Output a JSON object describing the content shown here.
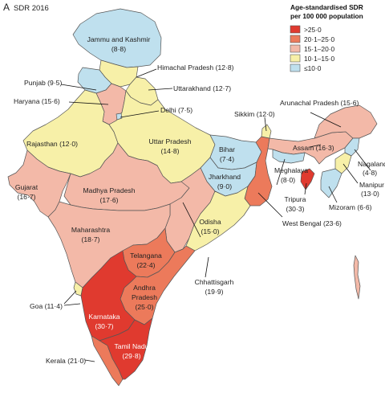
{
  "panel": {
    "letter": "A",
    "title": "SDR 2016"
  },
  "legend": {
    "title_line1": "Age-standardised SDR",
    "title_line2": "per 100 000 population",
    "items": [
      {
        "label": ">25·0",
        "color": "#e03a2f"
      },
      {
        "label": "20·1–25·0",
        "color": "#ec7a5b"
      },
      {
        "label": "15·1–20·0",
        "color": "#f3b9a8"
      },
      {
        "label": "10·1–15·0",
        "color": "#f7f0a8"
      },
      {
        "label": "≤10·0",
        "color": "#bfe0ee"
      }
    ]
  },
  "states": [
    {
      "name": "Jammu and Kashmir",
      "value": "(8·8)",
      "category": "≤10·0"
    },
    {
      "name": "Himachal Pradesh",
      "value": "(12·8)",
      "category": "10·1–15·0"
    },
    {
      "name": "Punjab",
      "value": "(9·5)",
      "category": "≤10·0"
    },
    {
      "name": "Uttarakhand",
      "value": "(12·7)",
      "category": "10·1–15·0"
    },
    {
      "name": "Haryana",
      "value": "(15·6)",
      "category": "15·1–20·0"
    },
    {
      "name": "Delhi",
      "value": "(7·5)",
      "category": "≤10·0"
    },
    {
      "name": "Rajasthan",
      "value": "(12·0)",
      "category": "10·1–15·0"
    },
    {
      "name": "Uttar Pradesh",
      "value": "(14·8)",
      "category": "10·1–15·0"
    },
    {
      "name": "Sikkim",
      "value": "(12·0)",
      "category": "10·1–15·0"
    },
    {
      "name": "Arunachal Pradesh",
      "value": "(15·6)",
      "category": "15·1–20·0"
    },
    {
      "name": "Assam",
      "value": "(16·3)",
      "category": "15·1–20·0"
    },
    {
      "name": "Nagaland",
      "value": "(4·8)",
      "category": "≤10·0"
    },
    {
      "name": "Bihar",
      "value": "(7·4)",
      "category": "≤10·0"
    },
    {
      "name": "Meghalaya",
      "value": "(8·0)",
      "category": "≤10·0"
    },
    {
      "name": "Manipur",
      "value": "(13·0)",
      "category": "10·1–15·0"
    },
    {
      "name": "Gujarat",
      "value": "(16·7)",
      "category": "15·1–20·0"
    },
    {
      "name": "Madhya Pradesh",
      "value": "(17·6)",
      "category": "15·1–20·0"
    },
    {
      "name": "Jharkhand",
      "value": "(9·0)",
      "category": "≤10·0"
    },
    {
      "name": "Tripura",
      "value": "(30·3)",
      "category": ">25·0"
    },
    {
      "name": "Mizoram",
      "value": "(6·6)",
      "category": "≤10·0"
    },
    {
      "name": "West Bengal",
      "value": "(23·6)",
      "category": "20·1–25·0"
    },
    {
      "name": "Odisha",
      "value": "(15·0)",
      "category": "10·1–15·0"
    },
    {
      "name": "Maharashtra",
      "value": "(18·7)",
      "category": "15·1–20·0"
    },
    {
      "name": "Telangana",
      "value": "(22·4)",
      "category": "20·1–25·0"
    },
    {
      "name": "Chhattisgarh",
      "value": "(19·9)",
      "category": "15·1–20·0"
    },
    {
      "name": "Goa",
      "value": "(11·4)",
      "category": "10·1–15·0"
    },
    {
      "name": "Andhra Pradesh",
      "value": "(25·0)",
      "category": "20·1–25·0"
    },
    {
      "name": "Karnataka",
      "value": "(30·7)",
      "category": ">25·0"
    },
    {
      "name": "Tamil Nadu",
      "value": "(29·8)",
      "category": ">25·0"
    },
    {
      "name": "Kerala",
      "value": "(21·0)",
      "category": "20·1–25·0"
    }
  ]
}
